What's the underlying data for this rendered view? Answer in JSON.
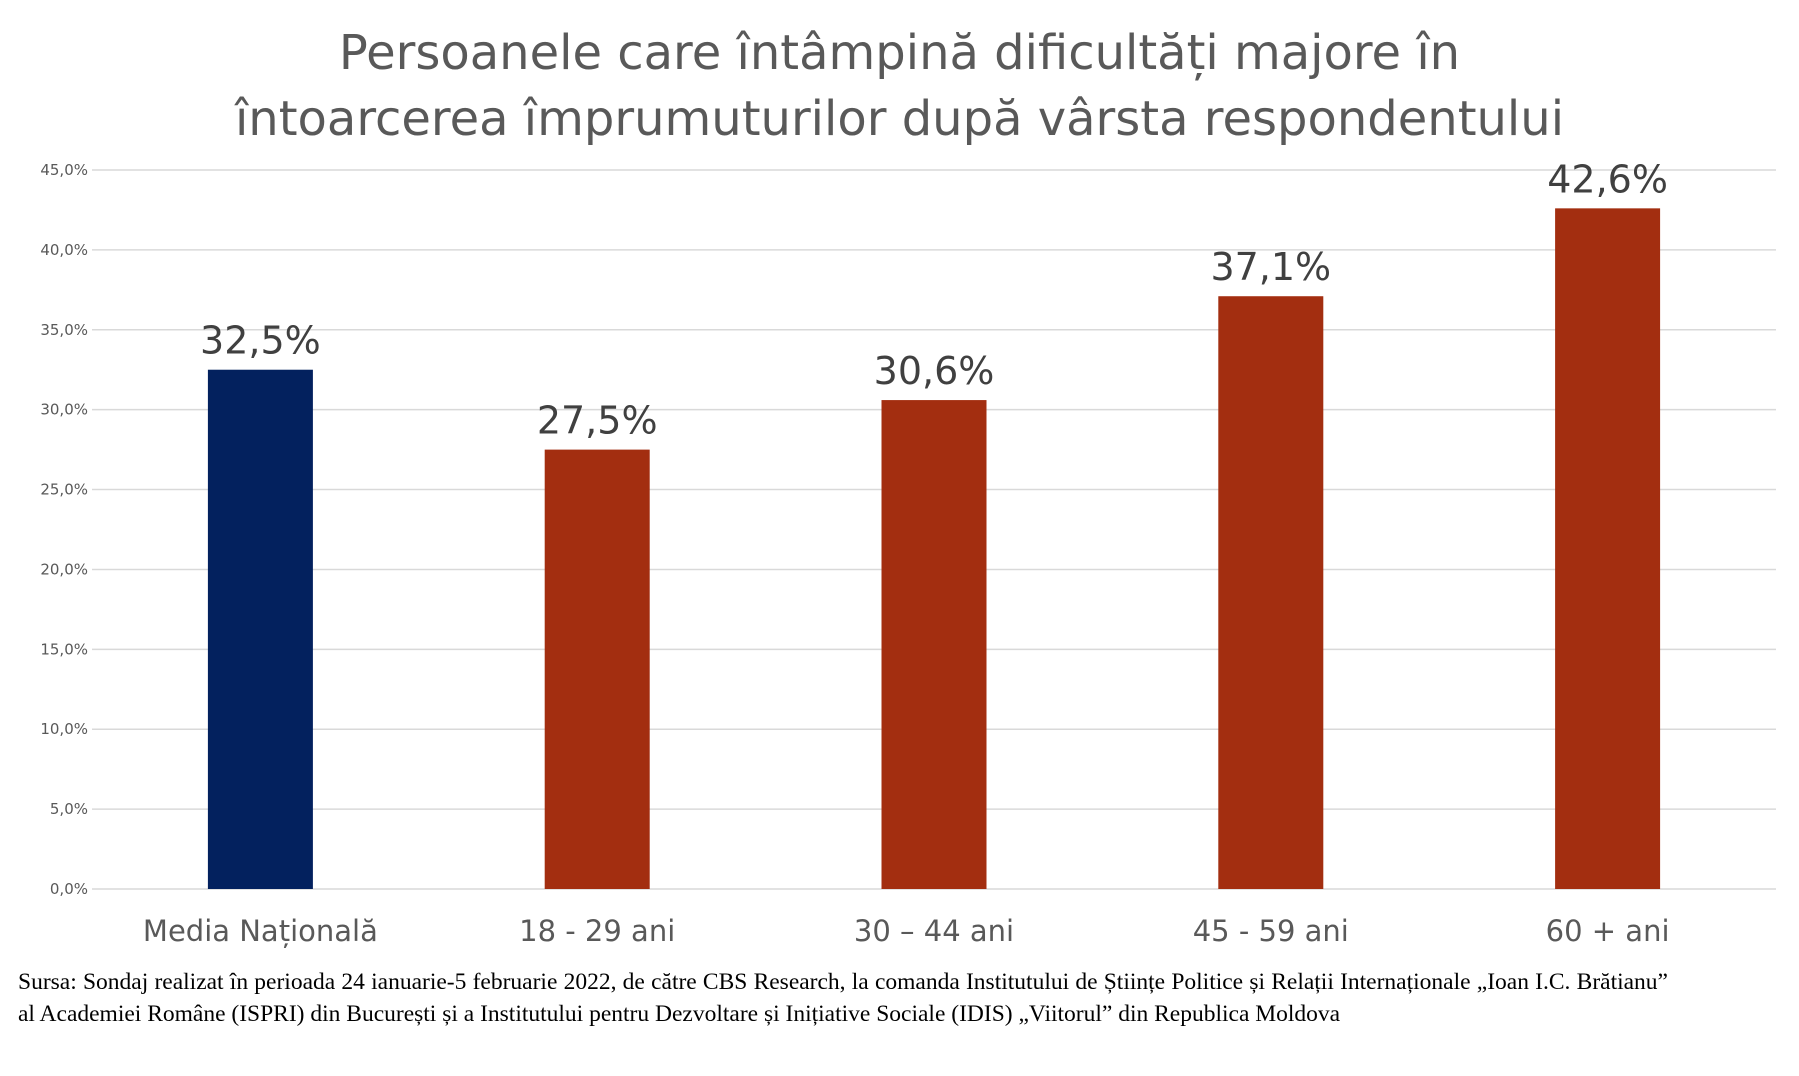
{
  "chart_data": {
    "type": "bar",
    "title": [
      "Persoanele care întâmpină dificultăți majore în",
      "întoarcerea împrumuturilor după vârsta respondentului"
    ],
    "categories": [
      "Media Națională",
      "18 - 29 ani",
      "30 – 44 ani",
      "45 - 59 ani",
      "60 + ani"
    ],
    "values": [
      32.5,
      27.5,
      30.6,
      37.1,
      42.6
    ],
    "data_labels": [
      "32,5%",
      "27,5%",
      "30,6%",
      "37,1%",
      "42,6%"
    ],
    "bar_colors": [
      "#03215e",
      "#a32e10",
      "#a32e10",
      "#a32e10",
      "#a32e10"
    ],
    "ylim": [
      0,
      45
    ],
    "yticks": [
      0,
      5,
      10,
      15,
      20,
      25,
      30,
      35,
      40,
      45
    ],
    "ytick_labels": [
      "0,0%",
      "5,0%",
      "10,0%",
      "15,0%",
      "20,0%",
      "25,0%",
      "30,0%",
      "35,0%",
      "40,0%",
      "45,0%"
    ],
    "xlabel": "",
    "ylabel": "",
    "grid": true,
    "legend": "none",
    "gridline_color": "#d9d9d9"
  },
  "source_note": "Sursa: Sondaj realizat în perioada 24 ianuarie-5 februarie 2022, de către CBS Research, la comanda Institutului de Științe Politice și Relații Internaționale „Ioan I.C. Brătianu” al Academiei Române (ISPRI) din București și a Institutului pentru Dezvoltare și Inițiative Sociale (IDIS) „Viitorul” din Republica Moldova"
}
